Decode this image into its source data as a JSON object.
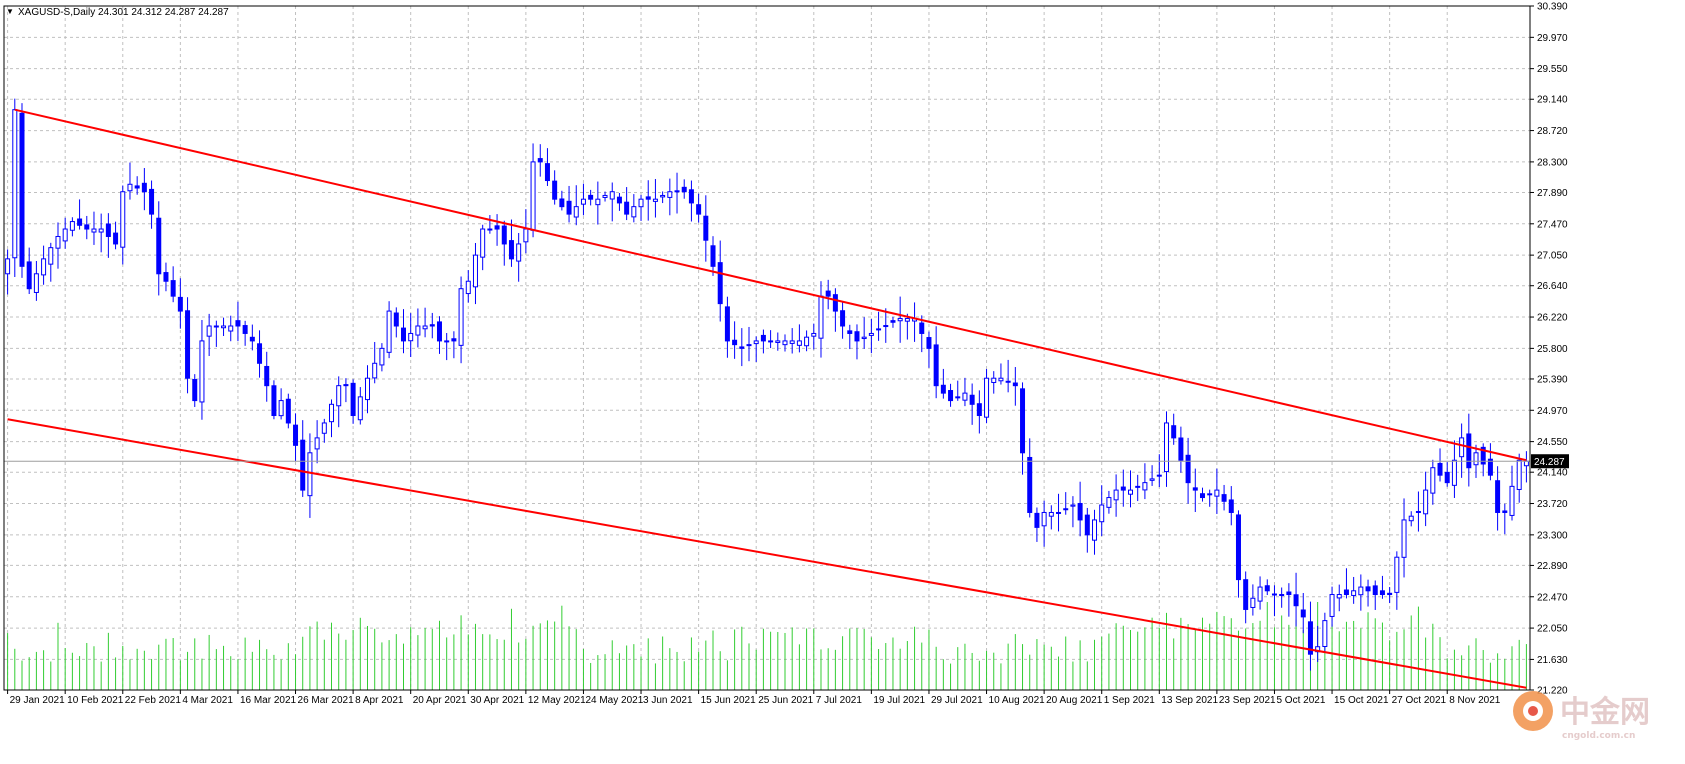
{
  "header": {
    "symbol_label": "XAGUSD-S,Daily",
    "ohlc_label": "24.301 24.312 24.287 24.287"
  },
  "colors": {
    "bull": "#0000ff",
    "bear": "#0000ff",
    "volume": "#32cd32",
    "trendline": "#ff0000",
    "grid": "#c0c0c0",
    "price_badge": "#000000"
  },
  "chart_data": {
    "type": "candlestick",
    "title": "XAGUSD-S,Daily",
    "xlabel": "",
    "ylabel": "",
    "ylim": [
      21.22,
      30.39
    ],
    "grid": true,
    "current_price": 24.287,
    "y_ticks": [
      "30.390",
      "29.970",
      "29.550",
      "29.140",
      "28.720",
      "28.300",
      "27.890",
      "27.470",
      "27.050",
      "26.640",
      "26.220",
      "25.800",
      "25.390",
      "24.970",
      "24.550",
      "24.140",
      "23.720",
      "23.300",
      "22.890",
      "22.470",
      "22.050",
      "21.630",
      "21.220"
    ],
    "x_ticks": [
      {
        "label": "29 Jan 2021",
        "index": 0
      },
      {
        "label": "10 Feb 2021",
        "index": 8
      },
      {
        "label": "22 Feb 2021",
        "index": 16
      },
      {
        "label": "4 Mar 2021",
        "index": 24
      },
      {
        "label": "16 Mar 2021",
        "index": 32
      },
      {
        "label": "26 Mar 2021",
        "index": 40
      },
      {
        "label": "8 Apr 2021",
        "index": 48
      },
      {
        "label": "20 Apr 2021",
        "index": 56
      },
      {
        "label": "30 Apr 2021",
        "index": 64
      },
      {
        "label": "12 May 2021",
        "index": 72
      },
      {
        "label": "24 May 2021",
        "index": 80
      },
      {
        "label": "3 Jun 2021",
        "index": 88
      },
      {
        "label": "15 Jun 2021",
        "index": 96
      },
      {
        "label": "25 Jun 2021",
        "index": 104
      },
      {
        "label": "7 Jul 2021",
        "index": 112
      },
      {
        "label": "19 Jul 2021",
        "index": 120
      },
      {
        "label": "29 Jul 2021",
        "index": 128
      },
      {
        "label": "10 Aug 2021",
        "index": 136
      },
      {
        "label": "20 Aug 2021",
        "index": 144
      },
      {
        "label": "1 Sep 2021",
        "index": 152
      },
      {
        "label": "13 Sep 2021",
        "index": 160
      },
      {
        "label": "23 Sep 2021",
        "index": 168
      },
      {
        "label": "5 Oct 2021",
        "index": 176
      },
      {
        "label": "15 Oct 2021",
        "index": 184
      },
      {
        "label": "27 Oct 2021",
        "index": 192
      },
      {
        "label": "8 Nov 2021",
        "index": 200
      }
    ],
    "close_anchors": [
      [
        0,
        27.0
      ],
      [
        1,
        29.0
      ],
      [
        2,
        26.9
      ],
      [
        3,
        26.6
      ],
      [
        5,
        27.0
      ],
      [
        7,
        27.3
      ],
      [
        9,
        27.5
      ],
      [
        11,
        27.4
      ],
      [
        13,
        27.4
      ],
      [
        15,
        27.2
      ],
      [
        16,
        27.9
      ],
      [
        17,
        28.0
      ],
      [
        19,
        27.9
      ],
      [
        20,
        27.6
      ],
      [
        21,
        26.8
      ],
      [
        22,
        26.7
      ],
      [
        24,
        26.3
      ],
      [
        25,
        25.4
      ],
      [
        26,
        25.1
      ],
      [
        27,
        25.9
      ],
      [
        28,
        26.1
      ],
      [
        30,
        26.1
      ],
      [
        32,
        26.1
      ],
      [
        34,
        25.9
      ],
      [
        36,
        25.3
      ],
      [
        37,
        24.9
      ],
      [
        38,
        25.1
      ],
      [
        40,
        24.5
      ],
      [
        41,
        23.9
      ],
      [
        42,
        24.4
      ],
      [
        44,
        24.8
      ],
      [
        46,
        25.3
      ],
      [
        47,
        25.3
      ],
      [
        48,
        24.9
      ],
      [
        50,
        25.4
      ],
      [
        52,
        25.8
      ],
      [
        53,
        26.3
      ],
      [
        55,
        25.9
      ],
      [
        57,
        26.1
      ],
      [
        59,
        26.1
      ],
      [
        60,
        25.9
      ],
      [
        62,
        25.9
      ],
      [
        63,
        26.6
      ],
      [
        64,
        26.7
      ],
      [
        66,
        27.4
      ],
      [
        68,
        27.4
      ],
      [
        70,
        27.0
      ],
      [
        72,
        27.4
      ],
      [
        73,
        28.3
      ],
      [
        74,
        28.3
      ],
      [
        76,
        27.8
      ],
      [
        78,
        27.6
      ],
      [
        80,
        27.8
      ],
      [
        82,
        27.8
      ],
      [
        84,
        27.9
      ],
      [
        86,
        27.6
      ],
      [
        88,
        27.8
      ],
      [
        90,
        27.8
      ],
      [
        92,
        27.9
      ],
      [
        94,
        27.9
      ],
      [
        96,
        27.6
      ],
      [
        98,
        26.9
      ],
      [
        99,
        26.4
      ],
      [
        100,
        25.9
      ],
      [
        102,
        25.8
      ],
      [
        104,
        25.9
      ],
      [
        106,
        25.9
      ],
      [
        108,
        25.9
      ],
      [
        110,
        25.9
      ],
      [
        112,
        26.0
      ],
      [
        113,
        26.5
      ],
      [
        114,
        26.5
      ],
      [
        116,
        26.1
      ],
      [
        118,
        25.9
      ],
      [
        120,
        26.0
      ],
      [
        122,
        26.1
      ],
      [
        124,
        26.2
      ],
      [
        126,
        26.2
      ],
      [
        128,
        25.8
      ],
      [
        129,
        25.3
      ],
      [
        131,
        25.1
      ],
      [
        133,
        25.2
      ],
      [
        135,
        24.9
      ],
      [
        136,
        25.4
      ],
      [
        138,
        25.4
      ],
      [
        140,
        25.3
      ],
      [
        141,
        24.4
      ],
      [
        142,
        23.6
      ],
      [
        143,
        23.4
      ],
      [
        144,
        23.6
      ],
      [
        146,
        23.6
      ],
      [
        148,
        23.7
      ],
      [
        150,
        23.3
      ],
      [
        152,
        23.7
      ],
      [
        154,
        23.9
      ],
      [
        156,
        23.9
      ],
      [
        158,
        24.0
      ],
      [
        160,
        24.1
      ],
      [
        161,
        24.8
      ],
      [
        162,
        24.6
      ],
      [
        164,
        24.0
      ],
      [
        166,
        23.8
      ],
      [
        168,
        23.9
      ],
      [
        170,
        23.6
      ],
      [
        171,
        22.7
      ],
      [
        172,
        22.3
      ],
      [
        174,
        22.6
      ],
      [
        176,
        22.5
      ],
      [
        178,
        22.5
      ],
      [
        180,
        22.2
      ],
      [
        181,
        21.7
      ],
      [
        182,
        21.8
      ],
      [
        184,
        22.5
      ],
      [
        186,
        22.5
      ],
      [
        188,
        22.6
      ],
      [
        190,
        22.5
      ],
      [
        192,
        22.5
      ],
      [
        193,
        23.0
      ],
      [
        194,
        23.5
      ],
      [
        196,
        23.6
      ],
      [
        198,
        24.2
      ],
      [
        200,
        24.0
      ],
      [
        202,
        24.6
      ],
      [
        203,
        24.2
      ],
      [
        204,
        24.4
      ],
      [
        206,
        24.1
      ],
      [
        207,
        23.6
      ],
      [
        208,
        23.6
      ],
      [
        210,
        24.3
      ],
      [
        211,
        24.287
      ]
    ],
    "volume_range": [
      0,
      100
    ],
    "trendlines": [
      {
        "from": {
          "index": 1,
          "value": 29.0
        },
        "to": {
          "index": 211,
          "value": 24.3
        }
      },
      {
        "from": {
          "index": 0,
          "value": 24.85
        },
        "to": {
          "index": 211,
          "value": 21.25
        }
      }
    ]
  },
  "watermark": {
    "text": "中金网",
    "sub": "cngold.com.cn"
  }
}
